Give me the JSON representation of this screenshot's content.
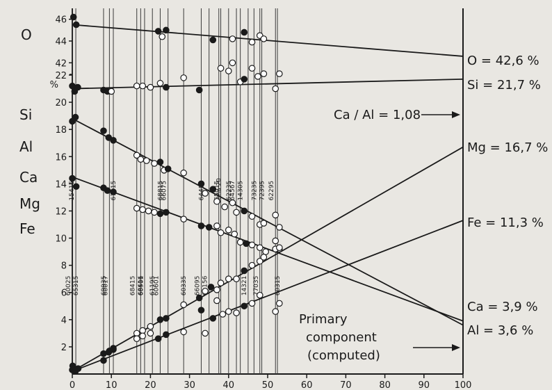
{
  "chart_data": {
    "type": "scatter",
    "title": "",
    "xlim": [
      0,
      100
    ],
    "x_ticks": [
      "0",
      "10",
      "20",
      "30",
      "40",
      "50",
      "60",
      "70",
      "80",
      "90",
      "100"
    ],
    "upper_panel": {
      "element_label": "O",
      "ylim": [
        41,
        47
      ],
      "y_ticks": [
        "46",
        "44",
        "42"
      ]
    },
    "lower_panel": {
      "unit_label": "%",
      "ylim": [
        0,
        22
      ],
      "y_ticks": [
        "22",
        "20",
        "18",
        "16",
        "14",
        "12",
        "10",
        "8",
        "6",
        "4",
        "2"
      ],
      "element_labels": [
        "Si",
        "Al",
        "Ca",
        "Mg",
        "Fe"
      ]
    },
    "sample_labels": [
      {
        "x": 0,
        "text": "60025"
      },
      {
        "x": 0.9,
        "text": "65315"
      },
      {
        "x": 0.9,
        "text": "15415"
      },
      {
        "x": 8,
        "text": "69935"
      },
      {
        "x": 9.5,
        "text": "60017"
      },
      {
        "x": 10.5,
        "text": "67115"
      },
      {
        "x": 16.5,
        "text": "68415"
      },
      {
        "x": 17.5,
        "text": "60501"
      },
      {
        "x": 18.5,
        "text": "68416"
      },
      {
        "x": 20.5,
        "text": "61195"
      },
      {
        "x": 22.5,
        "text": "60601"
      },
      {
        "x": 22.5,
        "text": "68815"
      },
      {
        "x": 24.5,
        "text": "66075"
      },
      {
        "x": 28.5,
        "text": "60335"
      },
      {
        "x": 33,
        "text": "66095"
      },
      {
        "x": 33,
        "text": "64455"
      },
      {
        "x": 35,
        "text": "61156"
      },
      {
        "x": 37.5,
        "text": "Luna 20"
      },
      {
        "x": 38,
        "text": "65015"
      },
      {
        "x": 40,
        "text": "62235"
      },
      {
        "x": 42,
        "text": "64567"
      },
      {
        "x": 43,
        "text": "14305"
      },
      {
        "x": 45,
        "text": "14321"
      },
      {
        "x": 46.5,
        "text": "73235"
      },
      {
        "x": 48,
        "text": "77035"
      },
      {
        "x": 48.5,
        "text": "72395"
      },
      {
        "x": 52,
        "text": "62295"
      },
      {
        "x": 52.5,
        "text": "60315"
      }
    ],
    "series": [
      {
        "name": "O",
        "panel": "upper",
        "fit": {
          "x0": 0,
          "y0": 45.5,
          "x1": 100,
          "y1": 42.6
        },
        "end_label": "O = 42,6 %",
        "points": [
          {
            "x": 0.3,
            "y": 46.2,
            "filled": true
          },
          {
            "x": 1,
            "y": 45.5,
            "filled": true
          },
          {
            "x": 22,
            "y": 44.9,
            "filled": true
          },
          {
            "x": 24,
            "y": 45.0,
            "filled": true
          },
          {
            "x": 23,
            "y": 44.4,
            "filled": false
          },
          {
            "x": 36,
            "y": 44.1,
            "filled": true
          },
          {
            "x": 41,
            "y": 44.2,
            "filled": false
          },
          {
            "x": 44,
            "y": 44.8,
            "filled": true
          },
          {
            "x": 46,
            "y": 43.9,
            "filled": false
          },
          {
            "x": 48,
            "y": 44.5,
            "filled": false
          },
          {
            "x": 49,
            "y": 44.2,
            "filled": false
          }
        ]
      },
      {
        "name": "Si",
        "panel": "lower",
        "fit": {
          "x0": 0,
          "y0": 21.0,
          "x1": 100,
          "y1": 21.7
        },
        "end_label": "Si = 21,7 %",
        "points": [
          {
            "x": 0,
            "y": 21.2,
            "filled": true
          },
          {
            "x": 0.6,
            "y": 20.8,
            "filled": true
          },
          {
            "x": 1.4,
            "y": 21.1,
            "filled": true
          },
          {
            "x": 8,
            "y": 20.9,
            "filled": true
          },
          {
            "x": 9,
            "y": 20.8,
            "filled": true
          },
          {
            "x": 10,
            "y": 20.8,
            "filled": false
          },
          {
            "x": 16.5,
            "y": 21.2,
            "filled": false
          },
          {
            "x": 18,
            "y": 21.2,
            "filled": false
          },
          {
            "x": 20,
            "y": 21.1,
            "filled": false
          },
          {
            "x": 22.5,
            "y": 21.4,
            "filled": false
          },
          {
            "x": 24,
            "y": 21.1,
            "filled": true
          },
          {
            "x": 28.5,
            "y": 21.8,
            "filled": false
          },
          {
            "x": 32.5,
            "y": 20.9,
            "filled": true
          },
          {
            "x": 38,
            "y": 22.5,
            "filled": false
          },
          {
            "x": 40,
            "y": 22.3,
            "filled": false
          },
          {
            "x": 41,
            "y": 22.9,
            "filled": false
          },
          {
            "x": 43,
            "y": 21.5,
            "filled": false
          },
          {
            "x": 44,
            "y": 21.7,
            "filled": true
          },
          {
            "x": 46,
            "y": 22.5,
            "filled": false
          },
          {
            "x": 47.5,
            "y": 21.9,
            "filled": false
          },
          {
            "x": 49,
            "y": 22.1,
            "filled": false
          },
          {
            "x": 52,
            "y": 21.0,
            "filled": false
          },
          {
            "x": 53,
            "y": 22.1,
            "filled": false
          }
        ]
      },
      {
        "name": "Al",
        "panel": "lower",
        "fit": {
          "x0": 0,
          "y0": 18.8,
          "x1": 100,
          "y1": 3.6
        },
        "end_label": "Al = 3,6 %",
        "points": [
          {
            "x": 0,
            "y": 18.6,
            "filled": true
          },
          {
            "x": 0.8,
            "y": 18.9,
            "filled": true
          },
          {
            "x": 8,
            "y": 17.9,
            "filled": true
          },
          {
            "x": 9.3,
            "y": 17.4,
            "filled": true
          },
          {
            "x": 10.5,
            "y": 17.2,
            "filled": true
          },
          {
            "x": 16.5,
            "y": 16.1,
            "filled": false
          },
          {
            "x": 17.5,
            "y": 15.8,
            "filled": false
          },
          {
            "x": 19,
            "y": 15.7,
            "filled": false
          },
          {
            "x": 21,
            "y": 15.5,
            "filled": false
          },
          {
            "x": 22.5,
            "y": 15.6,
            "filled": true
          },
          {
            "x": 23.5,
            "y": 15.0,
            "filled": false
          },
          {
            "x": 24.5,
            "y": 15.1,
            "filled": true
          },
          {
            "x": 28.5,
            "y": 14.8,
            "filled": false
          },
          {
            "x": 33,
            "y": 14.0,
            "filled": true
          },
          {
            "x": 34,
            "y": 13.3,
            "filled": false
          },
          {
            "x": 36,
            "y": 13.6,
            "filled": true
          },
          {
            "x": 37,
            "y": 12.7,
            "filled": false
          },
          {
            "x": 39,
            "y": 12.3,
            "filled": false
          },
          {
            "x": 41,
            "y": 12.6,
            "filled": false
          },
          {
            "x": 42,
            "y": 11.9,
            "filled": false
          },
          {
            "x": 44,
            "y": 12.0,
            "filled": true
          },
          {
            "x": 46,
            "y": 11.6,
            "filled": false
          },
          {
            "x": 48,
            "y": 11.0,
            "filled": false
          },
          {
            "x": 49,
            "y": 11.1,
            "filled": false
          },
          {
            "x": 52,
            "y": 11.7,
            "filled": false
          },
          {
            "x": 53,
            "y": 10.8,
            "filled": false
          }
        ]
      },
      {
        "name": "Ca",
        "panel": "lower",
        "fit": {
          "x0": 0,
          "y0": 14.5,
          "x1": 100,
          "y1": 3.9
        },
        "end_label": "Ca = 3,9 %",
        "points": [
          {
            "x": 0,
            "y": 14.4,
            "filled": true
          },
          {
            "x": 1,
            "y": 13.8,
            "filled": true
          },
          {
            "x": 8,
            "y": 13.7,
            "filled": true
          },
          {
            "x": 9,
            "y": 13.5,
            "filled": true
          },
          {
            "x": 10.5,
            "y": 13.4,
            "filled": true
          },
          {
            "x": 16.5,
            "y": 12.2,
            "filled": false
          },
          {
            "x": 18,
            "y": 12.1,
            "filled": false
          },
          {
            "x": 19.5,
            "y": 12.0,
            "filled": false
          },
          {
            "x": 21,
            "y": 11.9,
            "filled": false
          },
          {
            "x": 22.5,
            "y": 11.8,
            "filled": true
          },
          {
            "x": 24,
            "y": 11.9,
            "filled": true
          },
          {
            "x": 28.5,
            "y": 11.4,
            "filled": false
          },
          {
            "x": 33,
            "y": 10.9,
            "filled": true
          },
          {
            "x": 35,
            "y": 10.8,
            "filled": true
          },
          {
            "x": 37,
            "y": 10.9,
            "filled": false
          },
          {
            "x": 38,
            "y": 10.4,
            "filled": false
          },
          {
            "x": 40,
            "y": 10.6,
            "filled": false
          },
          {
            "x": 41.5,
            "y": 10.3,
            "filled": false
          },
          {
            "x": 43,
            "y": 9.7,
            "filled": false
          },
          {
            "x": 44.5,
            "y": 9.6,
            "filled": true
          },
          {
            "x": 46,
            "y": 9.5,
            "filled": false
          },
          {
            "x": 48,
            "y": 9.3,
            "filled": false
          },
          {
            "x": 49.5,
            "y": 9.0,
            "filled": false
          },
          {
            "x": 52,
            "y": 9.8,
            "filled": false
          },
          {
            "x": 53,
            "y": 9.2,
            "filled": false
          }
        ]
      },
      {
        "name": "Mg",
        "panel": "lower",
        "fit": {
          "x0": 0,
          "y0": 0.2,
          "x1": 100,
          "y1": 16.7
        },
        "end_label": "Mg = 16,7 %",
        "points": [
          {
            "x": 0.1,
            "y": 0.6,
            "filled": true
          },
          {
            "x": 0.6,
            "y": 0.3,
            "filled": true
          },
          {
            "x": 8,
            "y": 1.0,
            "filled": true
          },
          {
            "x": 9.3,
            "y": 1.6,
            "filled": true
          },
          {
            "x": 10.5,
            "y": 1.8,
            "filled": true
          },
          {
            "x": 16.5,
            "y": 3.0,
            "filled": false
          },
          {
            "x": 18,
            "y": 3.2,
            "filled": false
          },
          {
            "x": 20,
            "y": 3.5,
            "filled": false
          },
          {
            "x": 22.5,
            "y": 4.0,
            "filled": true
          },
          {
            "x": 24,
            "y": 4.1,
            "filled": true
          },
          {
            "x": 28.5,
            "y": 5.1,
            "filled": false
          },
          {
            "x": 32.5,
            "y": 5.6,
            "filled": true
          },
          {
            "x": 34,
            "y": 6.1,
            "filled": false
          },
          {
            "x": 35.5,
            "y": 6.4,
            "filled": true
          },
          {
            "x": 37,
            "y": 6.2,
            "filled": false
          },
          {
            "x": 38,
            "y": 6.7,
            "filled": false
          },
          {
            "x": 40,
            "y": 7.0,
            "filled": false
          },
          {
            "x": 42,
            "y": 7.0,
            "filled": false
          },
          {
            "x": 44,
            "y": 7.6,
            "filled": true
          },
          {
            "x": 46,
            "y": 8.0,
            "filled": false
          },
          {
            "x": 48,
            "y": 8.3,
            "filled": false
          },
          {
            "x": 49,
            "y": 8.6,
            "filled": false
          },
          {
            "x": 52,
            "y": 9.2,
            "filled": false
          },
          {
            "x": 53,
            "y": 9.3,
            "filled": false
          }
        ]
      },
      {
        "name": "Fe",
        "panel": "lower",
        "fit": {
          "x0": 0,
          "y0": 0.2,
          "x1": 100,
          "y1": 11.3
        },
        "end_label": "Fe = 11,3 %",
        "points": [
          {
            "x": 0,
            "y": 0.3,
            "filled": true
          },
          {
            "x": 0.8,
            "y": 0.2,
            "filled": true
          },
          {
            "x": 1.5,
            "y": 0.4,
            "filled": true
          },
          {
            "x": 8,
            "y": 1.5,
            "filled": true
          },
          {
            "x": 9.5,
            "y": 1.7,
            "filled": true
          },
          {
            "x": 10.5,
            "y": 1.9,
            "filled": true
          },
          {
            "x": 16.5,
            "y": 2.6,
            "filled": false
          },
          {
            "x": 18,
            "y": 2.8,
            "filled": false
          },
          {
            "x": 20,
            "y": 3.0,
            "filled": false
          },
          {
            "x": 22,
            "y": 2.6,
            "filled": true
          },
          {
            "x": 24,
            "y": 2.9,
            "filled": true
          },
          {
            "x": 28.5,
            "y": 3.1,
            "filled": false
          },
          {
            "x": 33,
            "y": 4.7,
            "filled": true
          },
          {
            "x": 34,
            "y": 3.0,
            "filled": false
          },
          {
            "x": 36,
            "y": 4.1,
            "filled": true
          },
          {
            "x": 37,
            "y": 5.4,
            "filled": false
          },
          {
            "x": 38.5,
            "y": 4.4,
            "filled": false
          },
          {
            "x": 40,
            "y": 4.6,
            "filled": false
          },
          {
            "x": 42,
            "y": 4.5,
            "filled": false
          },
          {
            "x": 44,
            "y": 5.0,
            "filled": true
          },
          {
            "x": 46,
            "y": 5.2,
            "filled": false
          },
          {
            "x": 48,
            "y": 5.8,
            "filled": false
          },
          {
            "x": 52,
            "y": 4.6,
            "filled": false
          },
          {
            "x": 53,
            "y": 5.2,
            "filled": false
          }
        ]
      }
    ],
    "annotations": {
      "ratio": "Ca / Al = 1,08",
      "primary": [
        "Primary",
        "component",
        "(computed)"
      ]
    }
  }
}
